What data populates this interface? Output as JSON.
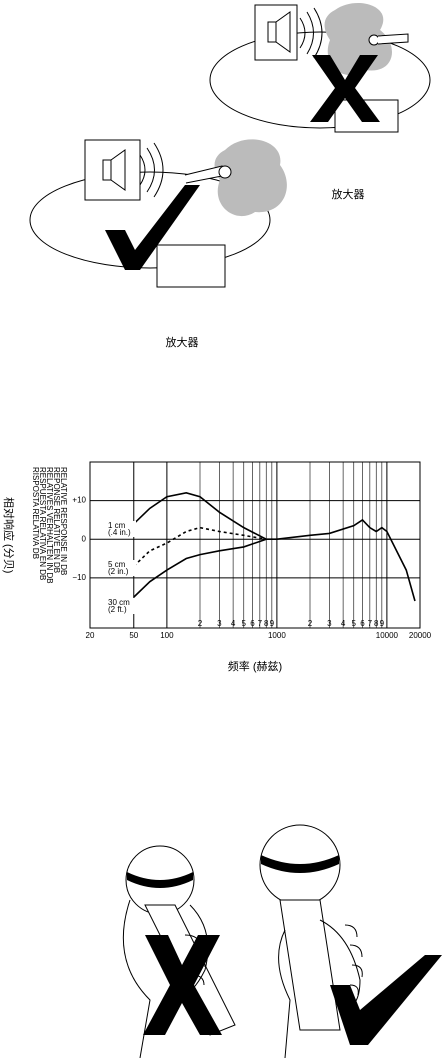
{
  "top_diagram": {
    "amplifier_label": "放大器"
  },
  "middle_diagram": {
    "amplifier_label": "放大器"
  },
  "chart_data": {
    "type": "line",
    "x_label": "频率 (赫兹)",
    "y_label": "相对响应 (分贝)",
    "y_label_translations": [
      "RELATIVE RESPONSE IN DB",
      "REPONSE RELATIVE EN DB",
      "RELATIVES VERHALTEN IN DB",
      "RESPUESTA RELATIVA EN DB",
      "RISPOSTA RELATIVA DB"
    ],
    "log_x": true,
    "grid": true,
    "xlim": [
      20,
      20000
    ],
    "ylim": [
      -23,
      20
    ],
    "xticks": [
      20,
      50,
      100,
      {
        "value": 200,
        "label": "2"
      },
      {
        "value": 300,
        "label": "3"
      },
      {
        "value": 400,
        "label": "4"
      },
      {
        "value": 500,
        "label": "5"
      },
      {
        "value": 600,
        "label": "6"
      },
      {
        "value": 700,
        "label": "7"
      },
      {
        "value": 800,
        "label": "8"
      },
      {
        "value": 900,
        "label": "9"
      },
      1000,
      {
        "value": 2000,
        "label": "2"
      },
      {
        "value": 3000,
        "label": "3"
      },
      {
        "value": 4000,
        "label": "4"
      },
      {
        "value": 5000,
        "label": "5"
      },
      {
        "value": 6000,
        "label": "6"
      },
      {
        "value": 7000,
        "label": "7"
      },
      {
        "value": 8000,
        "label": "8"
      },
      {
        "value": 9000,
        "label": "9"
      },
      10000,
      20000
    ],
    "yticks": [
      {
        "value": 10,
        "label": "+10"
      },
      0,
      {
        "value": -10,
        "label": "−10"
      }
    ],
    "x": [
      50,
      70,
      100,
      150,
      200,
      300,
      500,
      800,
      1000,
      2000,
      3000,
      5000,
      6000,
      7000,
      8000,
      9000,
      10000,
      15000,
      18000
    ],
    "series": [
      {
        "name": "1 cm",
        "note": "(.4 in.)",
        "color": "#000",
        "dash": "none",
        "values": [
          4,
          8,
          11,
          12,
          11,
          7,
          3,
          0,
          0,
          1,
          1.5,
          3.5,
          5,
          3,
          2,
          3,
          2,
          -8,
          -16
        ]
      },
      {
        "name": "5 cm",
        "note": "(2 in.)",
        "color": "#000",
        "dash": "3,3",
        "values": [
          -7,
          -3,
          -1,
          2,
          3,
          2,
          1,
          0,
          null,
          null,
          null,
          null,
          null,
          null,
          null,
          null,
          null,
          null,
          null
        ]
      },
      {
        "name": "30 cm",
        "note": "(2 ft.)",
        "color": "#000",
        "dash": "none",
        "values": [
          -15,
          -11,
          -8,
          -5,
          -4,
          -3,
          -2,
          0,
          null,
          null,
          null,
          null,
          null,
          null,
          null,
          null,
          null,
          null,
          null
        ]
      }
    ]
  }
}
